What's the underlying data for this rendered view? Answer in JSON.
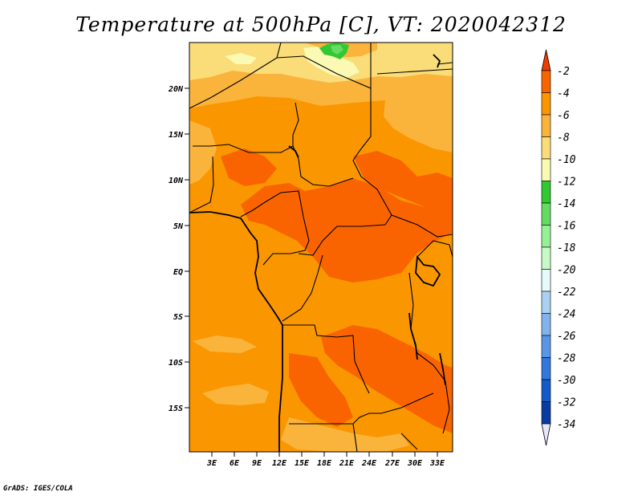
{
  "title": "Temperature at 500hPa [C], VT: 2020042312",
  "credit": "GrADS: IGES/COLA",
  "map": {
    "lat_ticks": [
      "20N",
      "15N",
      "10N",
      "5N",
      "EQ",
      "5S",
      "10S",
      "15S"
    ],
    "lon_ticks": [
      "3E",
      "6E",
      "9E",
      "12E",
      "15E",
      "18E",
      "21E",
      "24E",
      "27E",
      "30E",
      "33E"
    ],
    "colors": {
      "warm_dark": "#fa6400",
      "warm_mid": "#fa9600",
      "warm_light": "#fab43c",
      "warm_pale": "#fadc78",
      "green": "#32c832"
    }
  },
  "colorbar": {
    "labels": [
      "-2",
      "-4",
      "-6",
      "-8",
      "-10",
      "-12",
      "-14",
      "-16",
      "-18",
      "-20",
      "-22",
      "-24",
      "-26",
      "-28",
      "-30",
      "-32",
      "-34"
    ],
    "colors": [
      "#fa6400",
      "#fa9600",
      "#fab43c",
      "#fadc78",
      "#fafab4",
      "#32c832",
      "#64dc64",
      "#96f096",
      "#c8fac8",
      "#e6fafa",
      "#aad2f0",
      "#82b4eb",
      "#5a96e6",
      "#3278dc",
      "#145ac8",
      "#0a3ca0",
      "#000a6e"
    ],
    "top_arrow_color": "#f03c00",
    "bottom_arrow_color": "#e6e6fa"
  }
}
